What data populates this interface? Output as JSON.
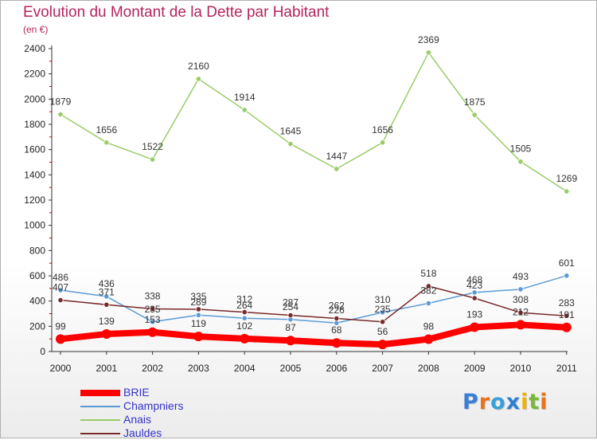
{
  "chart_data": {
    "type": "line",
    "title": "Evolution du Montant de la Dette par Habitant",
    "subtitle": "(en €)",
    "x": [
      "2000",
      "2001",
      "2002",
      "2003",
      "2004",
      "2005",
      "2006",
      "2007",
      "2008",
      "2009",
      "2010",
      "2011"
    ],
    "ylim": [
      0,
      2400
    ],
    "yticks": [
      0,
      200,
      400,
      600,
      800,
      1000,
      1200,
      1400,
      1600,
      1800,
      2000,
      2200,
      2400
    ],
    "grid": false,
    "legend_position": "bottom-left",
    "series": [
      {
        "name": "BRIE",
        "color": "#ff0000",
        "values": [
          99,
          139,
          153,
          119,
          102,
          87,
          68,
          56,
          98,
          193,
          212,
          191
        ]
      },
      {
        "name": "Champniers",
        "color": "#5b9bd5",
        "values": [
          486,
          436,
          235,
          289,
          264,
          254,
          226,
          310,
          382,
          468,
          493,
          601
        ]
      },
      {
        "name": "Anais",
        "color": "#99cc66",
        "values": [
          1879,
          1656,
          1522,
          2160,
          1914,
          1645,
          1447,
          1656,
          2369,
          1875,
          1505,
          1269
        ]
      },
      {
        "name": "Jauldes",
        "color": "#7a2a2a",
        "values": [
          407,
          371,
          338,
          335,
          312,
          287,
          262,
          235,
          518,
          423,
          308,
          283
        ]
      }
    ]
  },
  "logo": {
    "letters": [
      "P",
      "r",
      "o",
      "x",
      "i",
      "t",
      "i"
    ],
    "colors": [
      "#3a7fd5",
      "#e8731c",
      "#3aa0d8",
      "#2f7fd0",
      "#f0b400",
      "#7ab83a",
      "#e8731c"
    ]
  }
}
